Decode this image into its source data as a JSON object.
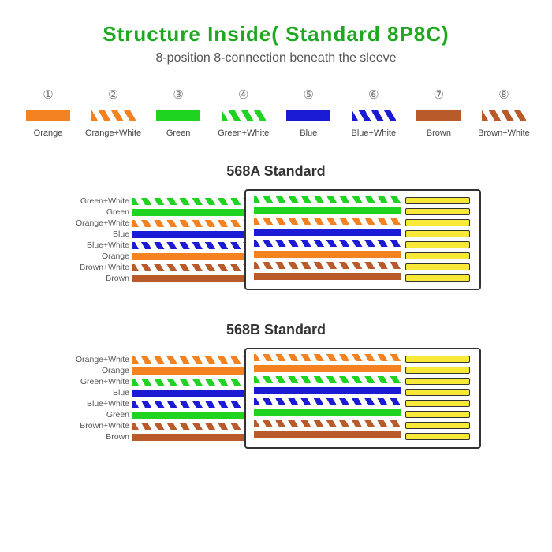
{
  "header": {
    "title": "Structure Inside( Standard 8P8C)",
    "title_color": "#1fa81f",
    "subtitle": "8-position 8-connection beneath the sleeve",
    "subtitle_color": "#555555"
  },
  "colors": {
    "orange": "#f58220",
    "green": "#1fd421",
    "blue": "#1b1bd6",
    "brown": "#b85a2a",
    "pin": "#f8e838"
  },
  "legend": [
    {
      "num": "①",
      "label": "Orange",
      "color": "orange",
      "striped": false
    },
    {
      "num": "②",
      "label": "Orange+White",
      "color": "orange",
      "striped": true
    },
    {
      "num": "③",
      "label": "Green",
      "color": "green",
      "striped": false
    },
    {
      "num": "④",
      "label": "Green+White",
      "color": "green",
      "striped": true
    },
    {
      "num": "⑤",
      "label": "Blue",
      "color": "blue",
      "striped": false
    },
    {
      "num": "⑥",
      "label": "Blue+White",
      "color": "blue",
      "striped": true
    },
    {
      "num": "⑦",
      "label": "Brown",
      "color": "brown",
      "striped": false
    },
    {
      "num": "⑧",
      "label": "Brown+White",
      "color": "brown",
      "striped": true
    }
  ],
  "standards": [
    {
      "title": "568A Standard",
      "wires": [
        {
          "label": "Green+White",
          "color": "green",
          "striped": true
        },
        {
          "label": "Green",
          "color": "green",
          "striped": false
        },
        {
          "label": "Orange+White",
          "color": "orange",
          "striped": true
        },
        {
          "label": "Blue",
          "color": "blue",
          "striped": false
        },
        {
          "label": "Blue+White",
          "color": "blue",
          "striped": true
        },
        {
          "label": "Orange",
          "color": "orange",
          "striped": false
        },
        {
          "label": "Brown+White",
          "color": "brown",
          "striped": true
        },
        {
          "label": "Brown",
          "color": "brown",
          "striped": false
        }
      ]
    },
    {
      "title": "568B Standard",
      "wires": [
        {
          "label": "Orange+White",
          "color": "orange",
          "striped": true
        },
        {
          "label": "Orange",
          "color": "orange",
          "striped": false
        },
        {
          "label": "Green+White",
          "color": "green",
          "striped": true
        },
        {
          "label": "Blue",
          "color": "blue",
          "striped": false
        },
        {
          "label": "Blue+White",
          "color": "blue",
          "striped": true
        },
        {
          "label": "Green",
          "color": "green",
          "striped": false
        },
        {
          "label": "Brown+White",
          "color": "brown",
          "striped": true
        },
        {
          "label": "Brown",
          "color": "brown",
          "striped": false
        }
      ]
    }
  ]
}
